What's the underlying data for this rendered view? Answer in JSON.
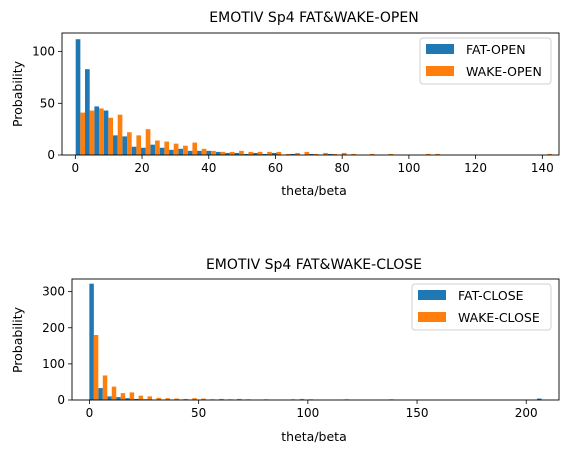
{
  "chart_data": [
    {
      "type": "bar",
      "title": "EMOTIV Sp4 FAT&WAKE-OPEN",
      "xlabel": "theta/beta",
      "ylabel": "Probability",
      "xlim": [
        -4,
        145
      ],
      "ylim": [
        0,
        118
      ],
      "xticks": [
        0,
        20,
        40,
        60,
        80,
        100,
        120,
        140
      ],
      "yticks": [
        0,
        50,
        100
      ],
      "legend_position": "top-right",
      "grid": false,
      "bin_centers": [
        1.5,
        4.3,
        7.1,
        9.9,
        12.7,
        15.5,
        18.3,
        21.1,
        23.9,
        26.7,
        29.5,
        32.3,
        35.1,
        37.9,
        40.7,
        43.5,
        46.3,
        49.1,
        51.9,
        54.7,
        57.5,
        60.3,
        63.1,
        65.9,
        68.7,
        71.5,
        74.3,
        77.1,
        79.9,
        82.7,
        85.5,
        88.3,
        91.1,
        93.9,
        96.7,
        99.5,
        102.3,
        105.1,
        107.9,
        110.7,
        113.5,
        116.3,
        119.1,
        121.9,
        124.7,
        127.5,
        130.3,
        133.1,
        135.9,
        138.7,
        141.5
      ],
      "series": [
        {
          "name": "FAT-OPEN",
          "color": "#1f77b4",
          "values": [
            112,
            83,
            47,
            43,
            19,
            18,
            8,
            7,
            10,
            7,
            5,
            6,
            4,
            4,
            4,
            3,
            2,
            2,
            1,
            2,
            1,
            2,
            0,
            1,
            0,
            1,
            0,
            1,
            0,
            0,
            0,
            0,
            0,
            0,
            0,
            0,
            0,
            0,
            0,
            0,
            0,
            0,
            0,
            0,
            0,
            0,
            0,
            0,
            0,
            0,
            0
          ]
        },
        {
          "name": "WAKE-OPEN",
          "color": "#ff7f0e",
          "values": [
            41,
            43,
            45,
            36,
            39,
            22,
            19,
            25,
            14,
            13,
            11,
            9,
            12,
            6,
            4,
            3,
            3,
            4,
            3,
            3,
            3,
            3,
            1,
            2,
            3,
            1,
            2,
            1,
            2,
            1,
            0,
            1,
            0,
            1,
            0,
            0,
            0,
            1,
            1,
            0,
            0,
            0,
            0,
            0,
            0,
            0,
            0,
            0,
            0,
            0,
            1
          ]
        }
      ]
    },
    {
      "type": "bar",
      "title": "EMOTIV Sp4 FAT&WAKE-CLOSE",
      "xlabel": "theta/beta",
      "ylabel": "Probability",
      "xlim": [
        -8,
        215
      ],
      "ylim": [
        0,
        335
      ],
      "xticks": [
        0,
        50,
        100,
        150,
        200
      ],
      "yticks": [
        0,
        100,
        200,
        300
      ],
      "legend_position": "top-right",
      "grid": false,
      "bin_centers": [
        2,
        6.1,
        10.2,
        14.3,
        18.4,
        22.5,
        26.6,
        30.7,
        34.8,
        38.9,
        43,
        47.1,
        51.2,
        55.3,
        59.4,
        63.5,
        67.6,
        71.7,
        75.8,
        79.9,
        84,
        88.1,
        92.2,
        96.3,
        100.4,
        104.5,
        108.6,
        112.7,
        116.8,
        120.9,
        125,
        129.1,
        133.2,
        137.3,
        141.4,
        145.5,
        149.6,
        153.7,
        157.8,
        161.9,
        166,
        170.1,
        174.2,
        178.3,
        182.4,
        186.5,
        190.6,
        194.7,
        198.8,
        202.9,
        207
      ],
      "series": [
        {
          "name": "FAT-CLOSE",
          "color": "#1f77b4",
          "values": [
            322,
            33,
            10,
            8,
            5,
            3,
            2,
            1,
            1,
            1,
            1,
            1,
            0,
            0,
            0,
            0,
            0,
            0,
            0,
            0,
            0,
            0,
            0,
            0,
            0,
            0,
            0,
            0,
            0,
            0,
            0,
            0,
            0,
            0,
            0,
            0,
            0,
            0,
            0,
            0,
            0,
            0,
            0,
            0,
            0,
            0,
            0,
            0,
            0,
            0,
            4
          ]
        },
        {
          "name": "WAKE-CLOSE",
          "color": "#ff7f0e",
          "values": [
            180,
            68,
            37,
            19,
            21,
            12,
            10,
            6,
            5,
            4,
            3,
            5,
            4,
            2,
            3,
            2,
            3,
            2,
            1,
            2,
            1,
            1,
            2,
            3,
            2,
            1,
            0,
            1,
            2,
            0,
            0,
            0,
            1,
            2,
            0,
            0,
            0,
            0,
            0,
            0,
            0,
            0,
            0,
            0,
            0,
            0,
            0,
            0,
            0,
            0,
            0
          ]
        }
      ]
    }
  ]
}
